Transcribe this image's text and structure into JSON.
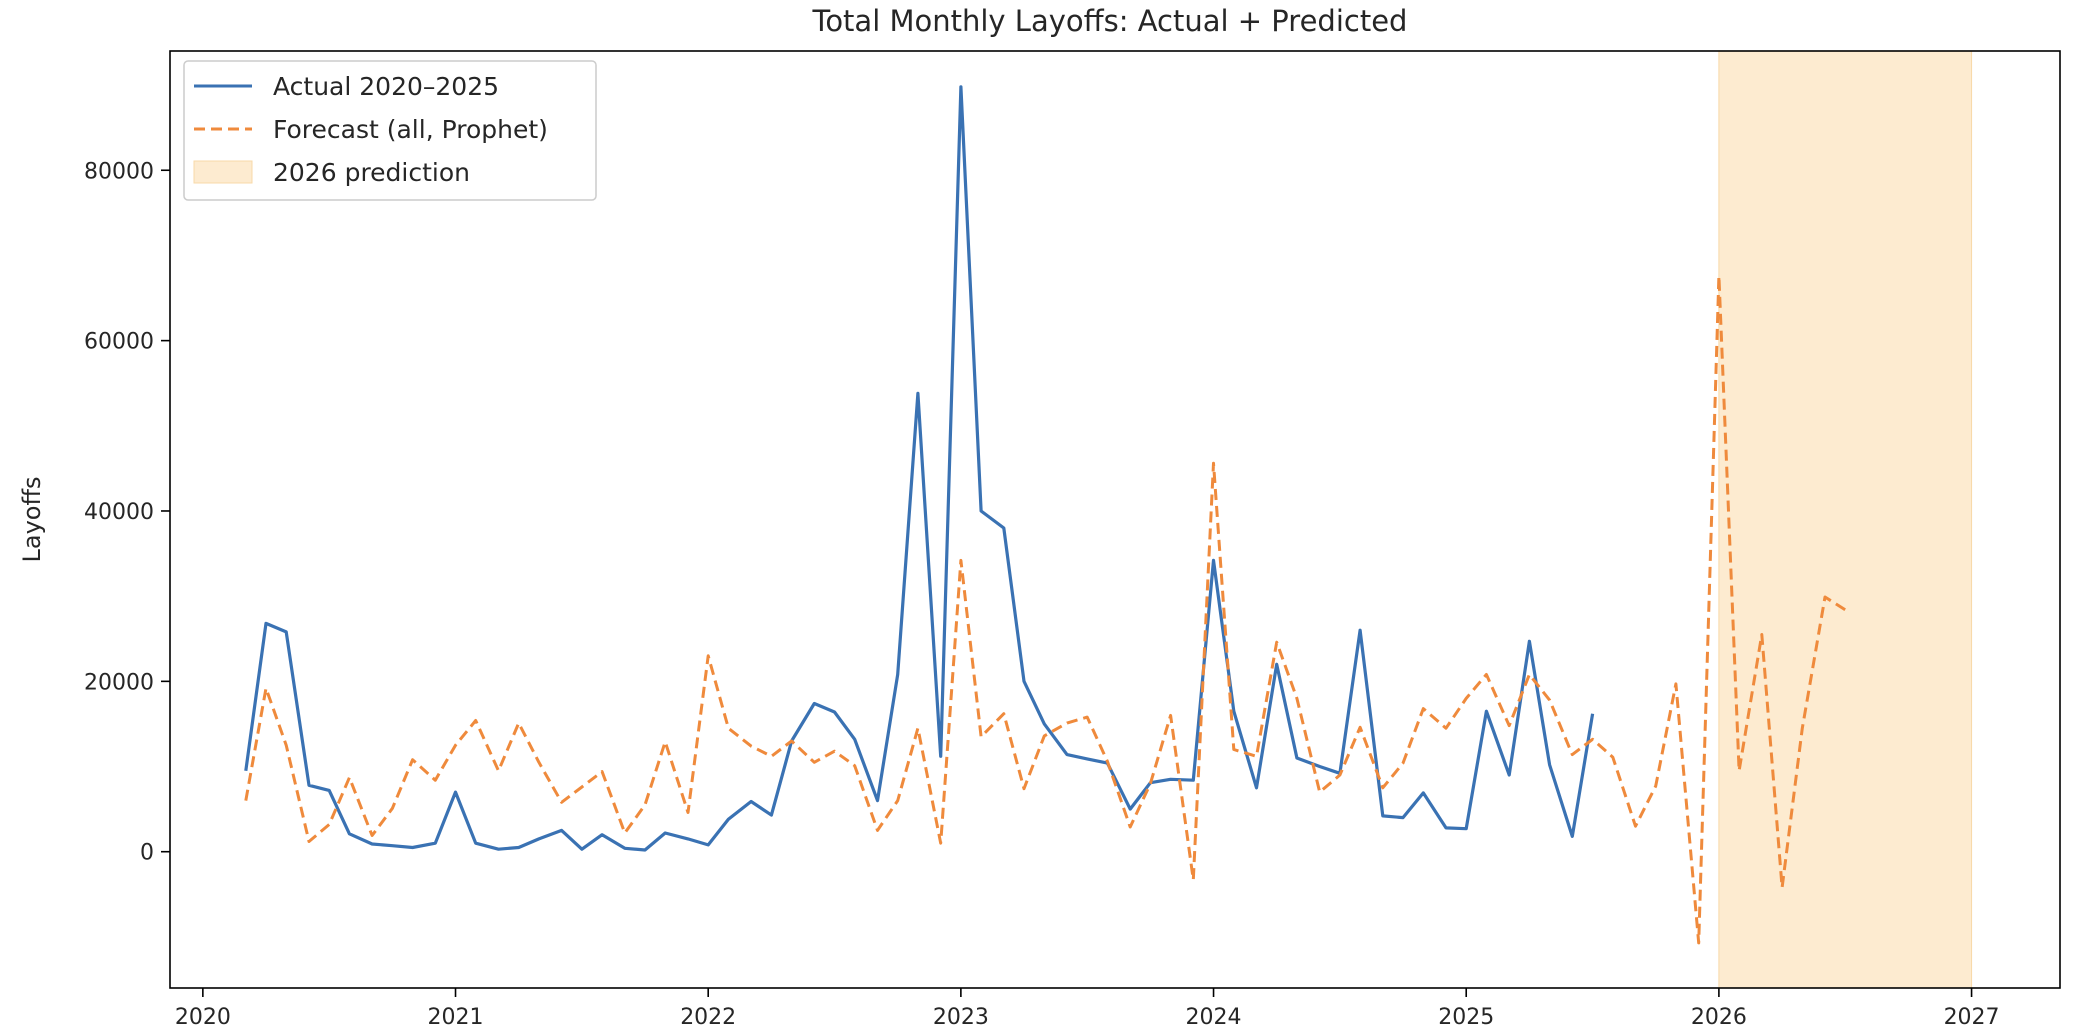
{
  "chart_data": {
    "type": "line",
    "title": "Total Monthly Layoffs: Actual + Predicted",
    "xlabel": "",
    "ylabel": "Layoffs",
    "xlim": [
      2019.87,
      2027.35
    ],
    "ylim": [
      -16000,
      94000
    ],
    "x_ticks": [
      2020,
      2021,
      2022,
      2023,
      2024,
      2025,
      2026,
      2027
    ],
    "x_tick_labels": [
      "2020",
      "2021",
      "2022",
      "2023",
      "2024",
      "2025",
      "2026",
      "2027"
    ],
    "y_ticks": [
      0,
      20000,
      40000,
      60000,
      80000
    ],
    "y_tick_labels": [
      "0",
      "20000",
      "40000",
      "60000",
      "80000"
    ],
    "grid": false,
    "legend_position": "top-left",
    "shaded_region": {
      "label": "2026 prediction",
      "x_start": 2026.0,
      "x_end": 2027.0,
      "color": "#fdebd0"
    },
    "series": [
      {
        "name": "Actual 2020–2025",
        "style": "solid",
        "color": "#3a72b3",
        "x": [
          2020.17,
          2020.25,
          2020.33,
          2020.42,
          2020.5,
          2020.58,
          2020.67,
          2020.75,
          2020.83,
          2020.92,
          2021.0,
          2021.08,
          2021.17,
          2021.25,
          2021.33,
          2021.42,
          2021.5,
          2021.58,
          2021.67,
          2021.75,
          2021.83,
          2021.92,
          2022.0,
          2022.08,
          2022.17,
          2022.25,
          2022.33,
          2022.42,
          2022.5,
          2022.58,
          2022.67,
          2022.75,
          2022.83,
          2022.92,
          2023.0,
          2023.08,
          2023.17,
          2023.25,
          2023.33,
          2023.42,
          2023.5,
          2023.58,
          2023.67,
          2023.75,
          2023.83,
          2023.92,
          2024.0,
          2024.08,
          2024.17,
          2024.25,
          2024.33,
          2024.42,
          2024.5,
          2024.58,
          2024.67,
          2024.75,
          2024.83,
          2024.92,
          2025.0,
          2025.08,
          2025.17,
          2025.25,
          2025.33,
          2025.42,
          2025.5
        ],
        "y": [
          9500,
          26800,
          25800,
          7800,
          7200,
          2100,
          900,
          700,
          500,
          1000,
          7000,
          1000,
          300,
          500,
          1500,
          2500,
          300,
          2000,
          400,
          200,
          2200,
          1500,
          800,
          3800,
          5900,
          4300,
          13000,
          17400,
          16400,
          13200,
          6000,
          20800,
          53800,
          11200,
          89800,
          40000,
          38000,
          20000,
          15000,
          11400,
          10900,
          10400,
          5000,
          8100,
          8500,
          8400,
          34200,
          16500,
          7500,
          22000,
          11000,
          10000,
          9200,
          26000,
          4200,
          4000,
          6900,
          2800,
          2700,
          16500,
          9000,
          24700,
          10200,
          1800,
          16200
        ]
      },
      {
        "name": "Forecast (all, Prophet)",
        "style": "dashed",
        "color": "#ef8a3c",
        "x": [
          2020.17,
          2020.25,
          2020.33,
          2020.42,
          2020.5,
          2020.58,
          2020.67,
          2020.75,
          2020.83,
          2020.92,
          2021.0,
          2021.08,
          2021.17,
          2021.25,
          2021.33,
          2021.42,
          2021.5,
          2021.58,
          2021.67,
          2021.75,
          2021.83,
          2021.92,
          2022.0,
          2022.08,
          2022.17,
          2022.25,
          2022.33,
          2022.42,
          2022.5,
          2022.58,
          2022.67,
          2022.75,
          2022.83,
          2022.92,
          2023.0,
          2023.08,
          2023.17,
          2023.25,
          2023.33,
          2023.42,
          2023.5,
          2023.58,
          2023.67,
          2023.75,
          2023.83,
          2023.92,
          2024.0,
          2024.08,
          2024.17,
          2024.25,
          2024.33,
          2024.42,
          2024.5,
          2024.58,
          2024.67,
          2024.75,
          2024.83,
          2024.92,
          2025.0,
          2025.08,
          2025.17,
          2025.25,
          2025.33,
          2025.42,
          2025.5,
          2025.58,
          2025.67,
          2025.75,
          2025.83,
          2025.92,
          2026.0,
          2026.08,
          2026.17,
          2026.25,
          2026.33,
          2026.42,
          2026.5
        ],
        "y": [
          6000,
          19200,
          12500,
          1200,
          3200,
          8700,
          1900,
          5100,
          10800,
          8400,
          12500,
          15400,
          9500,
          15100,
          10500,
          5800,
          7600,
          9400,
          2200,
          5500,
          12900,
          4600,
          23000,
          14500,
          12400,
          11200,
          13000,
          10500,
          11800,
          10100,
          2500,
          6000,
          14500,
          1000,
          34200,
          13500,
          16200,
          7400,
          13600,
          15100,
          15800,
          10600,
          2900,
          8000,
          16000,
          -3300,
          45600,
          12000,
          11200,
          24600,
          18000,
          7000,
          9000,
          14600,
          7500,
          10400,
          16800,
          14500,
          18000,
          20800,
          14800,
          20800,
          17800,
          11400,
          13200,
          11100,
          3000,
          7700,
          19700,
          -10700,
          67600,
          9500,
          25500,
          -4200,
          14500,
          29900,
          28400
        ]
      }
    ]
  }
}
